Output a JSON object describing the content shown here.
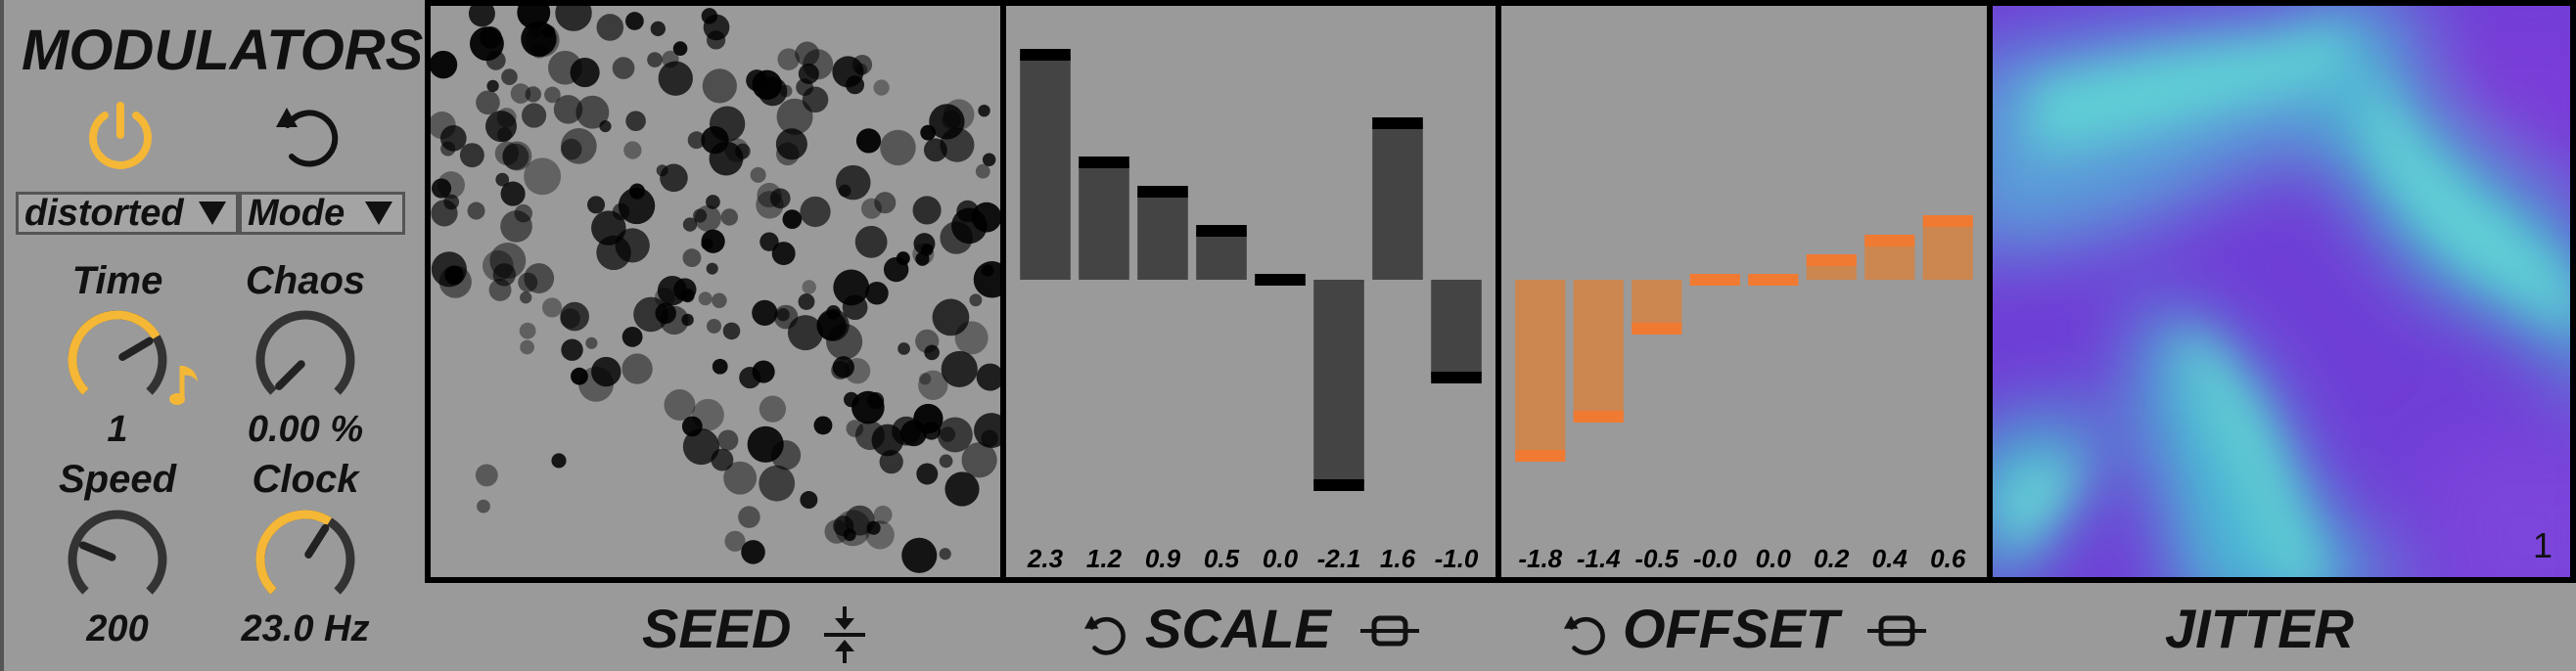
{
  "modulators": {
    "title": "MODULATORS",
    "power_color": "#f5b736",
    "dropdown_shape": "distorted",
    "dropdown_mode": "Mode",
    "knobs": {
      "time": {
        "label": "Time",
        "value": "1",
        "level": 0.72,
        "active": true
      },
      "chaos": {
        "label": "Chaos",
        "value": "0.00 %",
        "level": 0.0,
        "active": false
      },
      "speed": {
        "label": "Speed",
        "value": "200",
        "level": 0.25,
        "active": false
      },
      "clock": {
        "label": "Clock",
        "value": "23.0 Hz",
        "level": 0.62,
        "active": true
      }
    }
  },
  "footer": {
    "seed": "SEED",
    "scale": "SCALE",
    "offset": "OFFSET",
    "jitter": "JITTER"
  },
  "scale": {
    "bar_color": "#444444",
    "cap_color": "#000000",
    "range": [
      -2.5,
      2.5
    ],
    "values": [
      2.3,
      1.2,
      0.9,
      0.5,
      0.0,
      -2.1,
      1.6,
      -1.0
    ],
    "labels": [
      "2.3",
      "1.2",
      "0.9",
      "0.5",
      "0.0",
      "-2.1",
      "1.6",
      "-1.0"
    ]
  },
  "offset": {
    "bar_color": "#cc8650",
    "cap_color": "#f07a32",
    "range": [
      -2.5,
      2.5
    ],
    "values": [
      -1.8,
      -1.4,
      -0.5,
      -0.0,
      0.0,
      0.2,
      0.4,
      0.6
    ],
    "labels": [
      "-1.8",
      "-1.4",
      "-0.5",
      "-0.0",
      "0.0",
      "0.2",
      "0.4",
      "0.6"
    ]
  },
  "jitter": {
    "index": "1"
  }
}
